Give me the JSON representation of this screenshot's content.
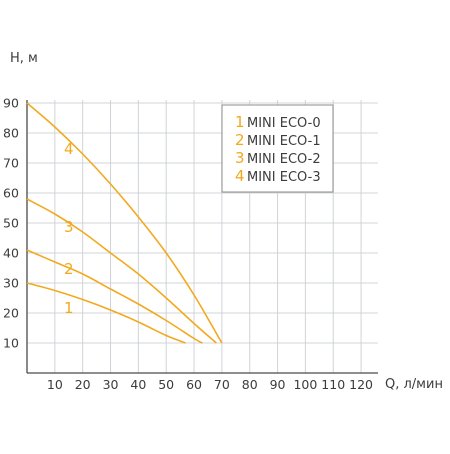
{
  "chart_data": {
    "type": "line",
    "ylabel": "H, м",
    "xlabel": "Q, л/мин",
    "xlim": [
      0,
      125
    ],
    "ylim": [
      0,
      90
    ],
    "grid": true,
    "legend_position": "top-right",
    "line_color": "#f2a91e",
    "x_ticks": [
      10,
      20,
      30,
      40,
      50,
      60,
      70,
      80,
      90,
      100,
      110,
      120
    ],
    "y_ticks": [
      10,
      20,
      30,
      40,
      50,
      60,
      70,
      80,
      90
    ],
    "series": [
      {
        "name": "MINI ECO-0",
        "number": "1",
        "x": [
          0,
          10,
          20,
          30,
          40,
          50,
          57
        ],
        "y": [
          30,
          27.5,
          24.5,
          21,
          17,
          12.5,
          10
        ]
      },
      {
        "name": "MINI ECO-1",
        "number": "2",
        "x": [
          0,
          10,
          20,
          30,
          40,
          50,
          60,
          63
        ],
        "y": [
          41,
          37,
          33,
          28,
          23,
          17.5,
          11.5,
          10
        ]
      },
      {
        "name": "MINI ECO-2",
        "number": "3",
        "x": [
          0,
          10,
          20,
          30,
          40,
          50,
          60,
          68
        ],
        "y": [
          58,
          53,
          47,
          40,
          33,
          25,
          16.5,
          10
        ]
      },
      {
        "name": "MINI ECO-3",
        "number": "4",
        "x": [
          0,
          10,
          20,
          30,
          40,
          50,
          60,
          70
        ],
        "y": [
          90,
          82,
          73,
          63,
          52,
          40,
          26,
          10
        ]
      }
    ],
    "curve_labels": [
      {
        "text": "4",
        "x": 15,
        "y": 73
      },
      {
        "text": "3",
        "x": 15,
        "y": 47
      },
      {
        "text": "2",
        "x": 15,
        "y": 33
      },
      {
        "text": "1",
        "x": 15,
        "y": 20
      }
    ]
  }
}
